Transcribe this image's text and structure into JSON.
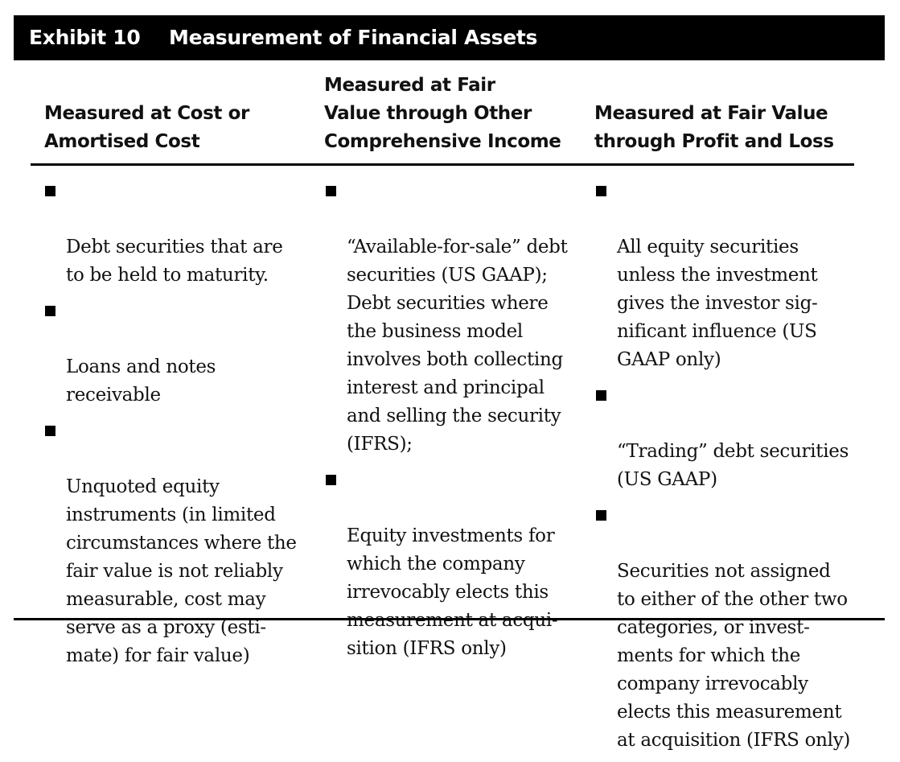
{
  "exhibit": {
    "label": "Exhibit 10",
    "title": "Measurement of Financial Assets"
  },
  "columns": [
    {
      "heading": "Measured at Cost or\nAmortised Cost",
      "items": [
        "Debt securities that are\nto be held to maturity.",
        "Loans and notes\nreceivable",
        "Unquoted equity\ninstruments (in limited\ncircumstances where the\nfair value is not reliably\nmeasurable, cost may\nserve as a proxy (esti-\nmate) for fair value)"
      ]
    },
    {
      "heading": "Measured at Fair\nValue through Other\nComprehensive Income",
      "items": [
        "“Available-for-sale” debt\nsecurities (US GAAP);\nDebt securities where\nthe business model\ninvolves both collecting\ninterest and principal\nand selling the security\n(IFRS);",
        "Equity investments for\nwhich the company\nirrevocably elects this\nmeasurement at acqui-\nsition (IFRS only)"
      ]
    },
    {
      "heading": "Measured at Fair Value\nthrough Profit and Loss",
      "items": [
        "All equity securities\nunless the investment\ngives the investor sig-\nnificant influence (US\nGAAP only)",
        "“Trading” debt securities\n(US GAAP)",
        "Securities not assigned\nto either of the other two\ncategories, or invest-\nments for which the\ncompany irrevocably\nelects this measurement\nat acquisition (IFRS only)"
      ]
    }
  ]
}
